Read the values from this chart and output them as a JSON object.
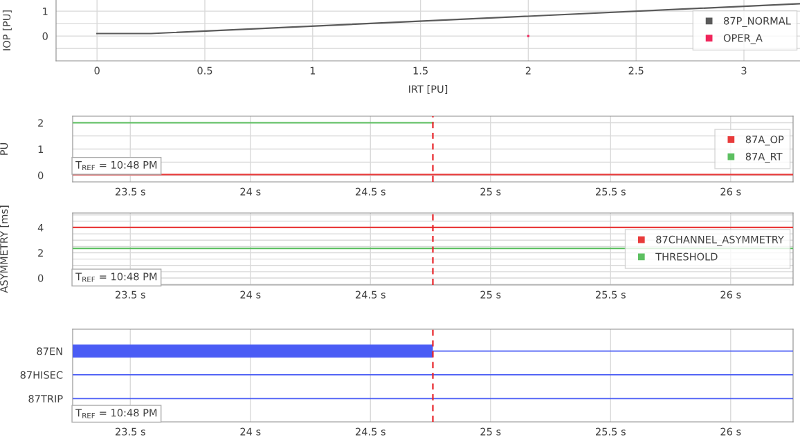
{
  "chart_data": [
    {
      "type": "line",
      "xlabel": "IRT [PU]",
      "ylabel": "IOP [PU]",
      "xlim": [
        -0.19,
        3.26
      ],
      "ylim": [
        -1,
        1.45
      ],
      "xticks": [
        0,
        0.5,
        1,
        1.5,
        2,
        2.5,
        3
      ],
      "yticks": [
        {
          "value": -0.5,
          "label": null
        },
        0,
        {
          "value": 0.5,
          "label": null
        },
        1
      ],
      "grid": true,
      "legend": "right",
      "series": [
        {
          "name": "87P_NORMAL",
          "color": "#5a5a5a",
          "x": [
            0,
            0.25,
            3.26
          ],
          "values": [
            0.1,
            0.1,
            1.3
          ]
        },
        {
          "name": "OPER_A",
          "type": "scatter",
          "color": "#f0245a",
          "x": [
            2
          ],
          "values": [
            0
          ]
        }
      ]
    },
    {
      "type": "line",
      "ylabel": "PU",
      "xlim": [
        23.26,
        26.26
      ],
      "ylim": [
        -0.25,
        2.25
      ],
      "xticks": [
        {
          "value": 23.5,
          "label": "23.5 s"
        },
        {
          "value": 24,
          "label": "24 s"
        },
        {
          "value": 24.5,
          "label": "24.5 s"
        },
        {
          "value": 25,
          "label": "25 s"
        },
        {
          "value": 25.5,
          "label": "25.5 s"
        },
        {
          "value": 26,
          "label": "26 s"
        }
      ],
      "yticks": [
        0,
        {
          "value": 0.5,
          "label": null
        },
        1,
        {
          "value": 1.5,
          "label": null
        },
        2
      ],
      "grid": true,
      "legend": "right",
      "ref_lines": [
        {
          "axis": "x",
          "value": 24.76,
          "color": "#e8242a",
          "line_style": "dashed"
        }
      ],
      "annotations": [
        "T$_{REF}$ = 10:48 PM"
      ],
      "series": [
        {
          "name": "87A_OP",
          "color": "#e83a3a",
          "x": [
            23.26,
            26.26
          ],
          "values": [
            0.03,
            0.03
          ]
        },
        {
          "name": "87A_RT",
          "color": "#5cbf60",
          "x": [
            23.26,
            24.76
          ],
          "values": [
            2,
            2
          ]
        }
      ]
    },
    {
      "type": "line",
      "ylabel": "ASYMMETRY [ms]",
      "xlim": [
        23.26,
        26.26
      ],
      "ylim": [
        -0.55,
        5.15
      ],
      "xticks": [
        {
          "value": 23.5,
          "label": "23.5 s"
        },
        {
          "value": 24,
          "label": "24 s"
        },
        {
          "value": 24.5,
          "label": "24.5 s"
        },
        {
          "value": 25,
          "label": "25 s"
        },
        {
          "value": 25.5,
          "label": "25.5 s"
        },
        {
          "value": 26,
          "label": "26 s"
        }
      ],
      "yticks": [
        {
          "value": -0.5,
          "label": null
        },
        0,
        {
          "value": 0.5,
          "label": null
        },
        {
          "value": 1,
          "label": null
        },
        {
          "value": 1.5,
          "label": null
        },
        2,
        {
          "value": 2.5,
          "label": null
        },
        {
          "value": 3,
          "label": null
        },
        {
          "value": 3.5,
          "label": null
        },
        4,
        {
          "value": 4.5,
          "label": null
        },
        {
          "value": 5,
          "label": null
        }
      ],
      "grid": true,
      "legend": "right",
      "ref_lines": [
        {
          "axis": "x",
          "value": 24.76,
          "color": "#e8242a",
          "line_style": "dashed"
        }
      ],
      "annotations": [
        "T$_{REF}$ = 10:48 PM"
      ],
      "series": [
        {
          "name": "87CHANNEL_ASYMMETRY",
          "color": "#e83a3a",
          "x": [
            23.26,
            26.26
          ],
          "values": [
            4.0,
            4.0
          ]
        },
        {
          "name": "THRESHOLD",
          "color": "#5cbf60",
          "x": [
            23.26,
            26.26
          ],
          "values": [
            2.35,
            2.35
          ]
        }
      ]
    },
    {
      "type": "bar",
      "orientation": "horizontal",
      "categories": [
        "87EN",
        "87HISEC",
        "87TRIP"
      ],
      "xlim": [
        23.26,
        26.26
      ],
      "xticks": [
        {
          "value": 23.5,
          "label": "23.5 s"
        },
        {
          "value": 24,
          "label": "24 s"
        },
        {
          "value": 24.5,
          "label": "24.5 s"
        },
        {
          "value": 25,
          "label": "25 s"
        },
        {
          "value": 25.5,
          "label": "25.5 s"
        },
        {
          "value": 26,
          "label": "26 s"
        }
      ],
      "grid": "x",
      "ref_lines": [
        {
          "axis": "x",
          "value": 24.76,
          "color": "#e8242a",
          "line_style": "dashed"
        }
      ],
      "annotations": [
        "T$_{REF}$ = 10:48 PM"
      ],
      "series": [
        {
          "color": "#4a5cf5",
          "base": [
            23.26,
            null,
            null
          ],
          "values": [
            1.5,
            null,
            null
          ]
        },
        {
          "color": "#4a5cf5",
          "base": [
            24.76,
            23.26,
            23.26
          ],
          "values": [
            1.5,
            3.0,
            3.0
          ]
        }
      ]
    }
  ]
}
